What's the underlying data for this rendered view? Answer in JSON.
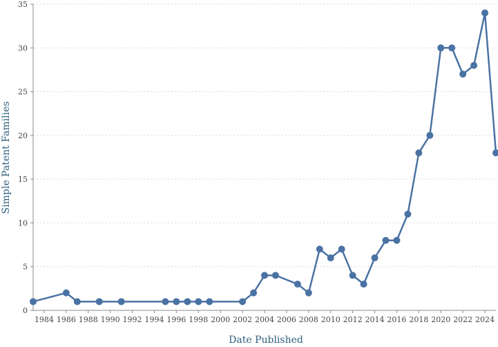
{
  "chart_data": {
    "type": "line",
    "xlabel": "Date Published",
    "ylabel": "Simple Patent Families",
    "xlim": [
      1983,
      2025
    ],
    "ylim": [
      0,
      35
    ],
    "x_ticks": [
      "1984",
      "1986",
      "1988",
      "1990",
      "1992",
      "1994",
      "1996",
      "1998",
      "2000",
      "2002",
      "2004",
      "2006",
      "2008",
      "2010",
      "2012",
      "2014",
      "2016",
      "2018",
      "2020",
      "2022",
      "2024"
    ],
    "y_ticks": [
      "0",
      "5",
      "10",
      "15",
      "20",
      "25",
      "30",
      "35"
    ],
    "grid": "horizontal dashed",
    "color": "#4a72a3",
    "series": [
      {
        "x": [
          1983,
          1986,
          1987,
          1989,
          1991,
          1995,
          1996,
          1997,
          1998,
          1999,
          2002,
          2003,
          2004,
          2005,
          2007,
          2008,
          2009,
          2010,
          2011,
          2012,
          2013,
          2014,
          2015,
          2016,
          2017,
          2018,
          2019,
          2020,
          2021,
          2022,
          2023,
          2024,
          2025
        ],
        "values": [
          1,
          2,
          1,
          1,
          1,
          1,
          1,
          1,
          1,
          1,
          1,
          2,
          4,
          4,
          3,
          2,
          7,
          6,
          7,
          4,
          3,
          6,
          8,
          8,
          11,
          18,
          20,
          30,
          30,
          27,
          28,
          34,
          18
        ]
      }
    ]
  }
}
